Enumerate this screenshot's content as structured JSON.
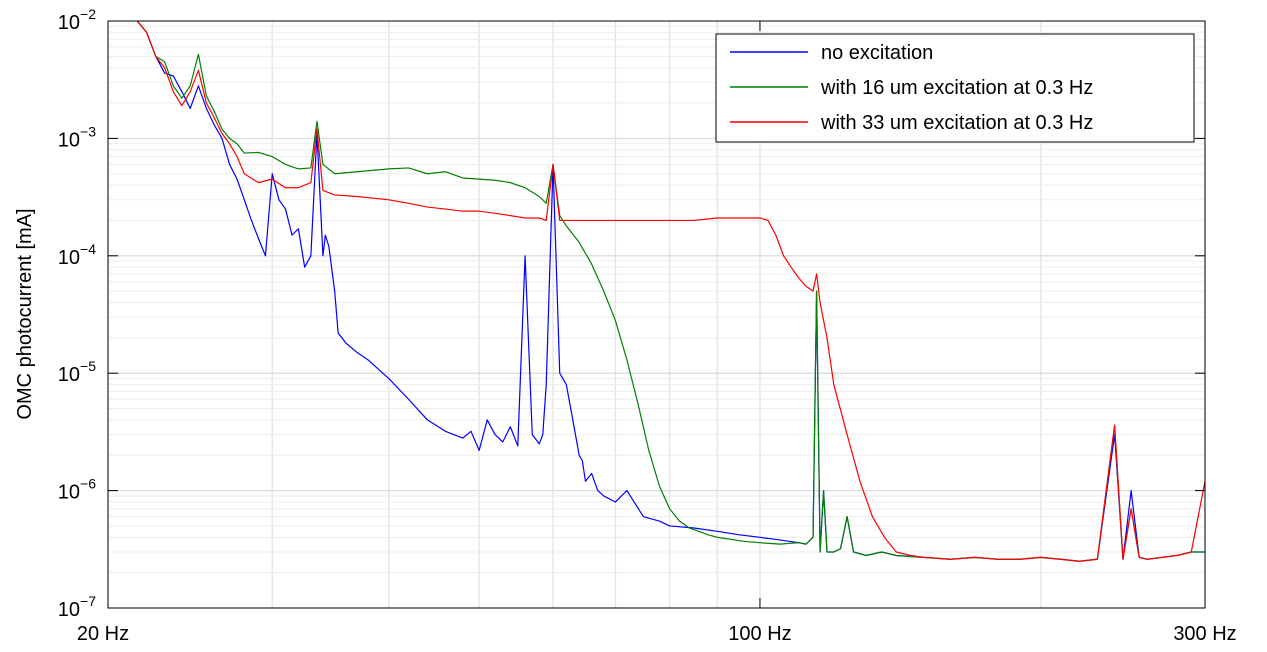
{
  "chart_data": {
    "type": "line",
    "x_scale": "log",
    "y_scale": "log",
    "xlim": [
      20,
      300
    ],
    "ylim": [
      1e-07,
      0.01
    ],
    "xticks": [
      {
        "value": 20,
        "label": "20 Hz"
      },
      {
        "value": 100,
        "label": "100 Hz"
      },
      {
        "value": 300,
        "label": "300 Hz"
      }
    ],
    "yticks": [
      {
        "value": 0.01,
        "base": "10",
        "exp": "−2"
      },
      {
        "value": 0.001,
        "base": "10",
        "exp": "−3"
      },
      {
        "value": 0.0001,
        "base": "10",
        "exp": "−4"
      },
      {
        "value": 1e-05,
        "base": "10",
        "exp": "−5"
      },
      {
        "value": 1e-06,
        "base": "10",
        "exp": "−6"
      },
      {
        "value": 1e-07,
        "base": "10",
        "exp": "−7"
      }
    ],
    "xlabel": "",
    "ylabel": "OMC photocurrent [mA]",
    "grid": true,
    "legend_position": "top-right",
    "series": [
      {
        "name": "no excitation",
        "color": "#0000ff",
        "x": [
          21.5,
          22,
          22.5,
          23,
          23.5,
          24,
          24.5,
          25,
          25.5,
          26,
          26.5,
          27,
          27.5,
          28,
          28.5,
          29,
          29.5,
          30,
          30.5,
          31,
          31.5,
          32,
          32.5,
          33,
          33.5,
          34,
          34.2,
          34.5,
          35,
          35.3,
          36,
          37,
          38,
          40,
          42,
          44,
          46,
          48,
          49,
          50,
          51,
          52,
          53,
          54,
          55,
          56,
          57,
          58,
          58.5,
          59,
          60,
          61,
          62,
          63,
          64,
          64.5,
          65,
          66,
          67,
          68,
          70,
          72,
          75,
          78,
          80,
          85,
          90,
          95,
          100,
          105,
          110,
          112,
          114,
          115,
          116,
          117,
          118,
          120,
          122,
          124,
          126,
          130,
          135,
          140,
          150,
          160,
          170,
          180,
          190,
          200,
          210,
          220,
          230,
          240,
          245,
          250,
          255,
          260,
          270,
          280,
          290,
          300
        ],
        "y": [
          0.01,
          0.008,
          0.005,
          0.0036,
          0.0034,
          0.0025,
          0.0018,
          0.0028,
          0.0018,
          0.0013,
          0.001,
          0.0006,
          0.00045,
          0.0003,
          0.0002,
          0.00014,
          0.0001,
          0.0005,
          0.0003,
          0.00025,
          0.00015,
          0.00017,
          8e-05,
          0.0001,
          0.0011,
          0.0001,
          0.00015,
          0.00012,
          5e-05,
          2.2e-05,
          1.8e-05,
          1.5e-05,
          1.3e-05,
          9e-06,
          6e-06,
          4e-06,
          3.2e-06,
          2.8e-06,
          3.2e-06,
          2.2e-06,
          4e-06,
          3e-06,
          2.6e-06,
          3.5e-06,
          2.4e-06,
          0.0001,
          3e-06,
          2.5e-06,
          3e-06,
          8e-06,
          0.0006,
          1e-05,
          8e-06,
          4e-06,
          2e-06,
          1.8e-06,
          1.2e-06,
          1.4e-06,
          1e-06,
          9e-07,
          8e-07,
          1e-06,
          6e-07,
          5.5e-07,
          5e-07,
          4.8e-07,
          4.5e-07,
          4.2e-07,
          4e-07,
          3.8e-07,
          3.6e-07,
          3.5e-07,
          4e-07,
          5e-05,
          3e-07,
          1e-06,
          3e-07,
          3e-07,
          3.2e-07,
          6e-07,
          3e-07,
          2.8e-07,
          3e-07,
          2.8e-07,
          2.7e-07,
          2.6e-07,
          2.7e-07,
          2.6e-07,
          2.6e-07,
          2.7e-07,
          2.6e-07,
          2.5e-07,
          2.6e-07,
          3e-06,
          2.6e-07,
          1e-06,
          2.7e-07,
          2.6e-07,
          2.7e-07,
          2.8e-07,
          3e-07,
          3e-07
        ]
      },
      {
        "name": "with 16 um excitation at 0.3 Hz",
        "color": "#008000",
        "x": [
          21.5,
          22,
          22.5,
          23,
          23.5,
          24,
          24.5,
          25,
          25.5,
          26,
          26.5,
          27,
          27.5,
          28,
          29,
          30,
          31,
          32,
          33,
          33.5,
          34,
          35,
          37,
          40,
          42,
          44,
          46,
          48,
          50,
          52,
          54,
          56,
          58,
          59,
          60,
          61,
          62,
          64,
          66,
          68,
          70,
          72,
          74,
          76,
          78,
          80,
          82,
          84,
          86,
          88,
          90,
          92,
          94,
          96,
          100,
          105,
          110,
          112,
          114,
          115,
          116,
          117,
          118,
          120,
          122,
          124,
          126,
          130,
          135,
          140,
          150,
          160,
          170,
          180,
          190,
          200,
          210,
          220,
          230,
          240,
          245,
          250,
          255,
          260,
          270,
          280,
          290,
          300
        ],
        "y": [
          0.01,
          0.008,
          0.005,
          0.0045,
          0.0028,
          0.0022,
          0.0028,
          0.0052,
          0.0023,
          0.0017,
          0.0012,
          0.001,
          0.0009,
          0.00075,
          0.00076,
          0.0007,
          0.0006,
          0.00055,
          0.00056,
          0.0014,
          0.0006,
          0.0005,
          0.00052,
          0.00055,
          0.00056,
          0.0005,
          0.00052,
          0.00046,
          0.00045,
          0.00044,
          0.00042,
          0.00038,
          0.00032,
          0.00028,
          0.0006,
          0.00022,
          0.00018,
          0.00013,
          8.5e-05,
          5e-05,
          2.8e-05,
          1.3e-05,
          5.5e-06,
          2.2e-06,
          1.1e-06,
          7e-07,
          5.5e-07,
          4.8e-07,
          4.5e-07,
          4.2e-07,
          4e-07,
          3.9e-07,
          3.8e-07,
          3.7e-07,
          3.6e-07,
          3.5e-07,
          3.6e-07,
          3.5e-07,
          4e-07,
          5e-05,
          3e-07,
          1e-06,
          3e-07,
          3e-07,
          3.2e-07,
          6e-07,
          3e-07,
          2.8e-07,
          3e-07,
          2.8e-07,
          2.7e-07,
          2.6e-07,
          2.7e-07,
          2.6e-07,
          2.6e-07,
          2.7e-07,
          2.6e-07,
          2.5e-07,
          2.6e-07,
          3.6e-06,
          2.6e-07,
          7e-07,
          2.7e-07,
          2.6e-07,
          2.7e-07,
          2.8e-07,
          3e-07,
          3e-07
        ]
      },
      {
        "name": "with 33 um excitation at 0.3 Hz",
        "color": "#ff0000",
        "x": [
          21.5,
          22,
          22.5,
          23,
          23.5,
          24,
          24.5,
          25,
          25.5,
          26,
          26.5,
          27,
          27.5,
          28,
          29,
          30,
          31,
          32,
          33,
          33.5,
          34,
          35,
          37,
          40,
          42,
          44,
          46,
          48,
          50,
          52,
          54,
          56,
          58,
          59,
          60,
          61,
          62,
          64,
          66,
          68,
          70,
          75,
          80,
          85,
          90,
          95,
          100,
          102,
          104,
          106,
          108,
          110,
          112,
          114,
          115,
          116,
          118,
          120,
          124,
          128,
          132,
          136,
          140,
          145,
          150,
          160,
          170,
          180,
          190,
          200,
          210,
          220,
          230,
          240,
          245,
          250,
          255,
          260,
          270,
          280,
          290,
          300
        ],
        "y": [
          0.01,
          0.008,
          0.005,
          0.004,
          0.0025,
          0.0019,
          0.0025,
          0.0038,
          0.002,
          0.0015,
          0.0011,
          0.0009,
          0.0007,
          0.0005,
          0.00042,
          0.00045,
          0.00038,
          0.00038,
          0.00042,
          0.0012,
          0.00036,
          0.00033,
          0.00032,
          0.0003,
          0.00028,
          0.00026,
          0.00025,
          0.00024,
          0.00024,
          0.00023,
          0.00022,
          0.00021,
          0.00021,
          0.0002,
          0.0006,
          0.0002,
          0.0002,
          0.0002,
          0.0002,
          0.0002,
          0.0002,
          0.0002,
          0.0002,
          0.0002,
          0.00021,
          0.00021,
          0.00021,
          0.0002,
          0.00015,
          0.0001,
          8e-05,
          6.5e-05,
          5.5e-05,
          5e-05,
          7e-05,
          4e-05,
          2e-05,
          8e-06,
          3e-06,
          1.2e-06,
          6e-07,
          4e-07,
          3e-07,
          2.8e-07,
          2.7e-07,
          2.6e-07,
          2.7e-07,
          2.6e-07,
          2.6e-07,
          2.7e-07,
          2.6e-07,
          2.5e-07,
          2.6e-07,
          3.6e-06,
          2.6e-07,
          7e-07,
          2.7e-07,
          2.6e-07,
          2.7e-07,
          2.8e-07,
          3e-07,
          1.2e-06
        ]
      }
    ]
  }
}
